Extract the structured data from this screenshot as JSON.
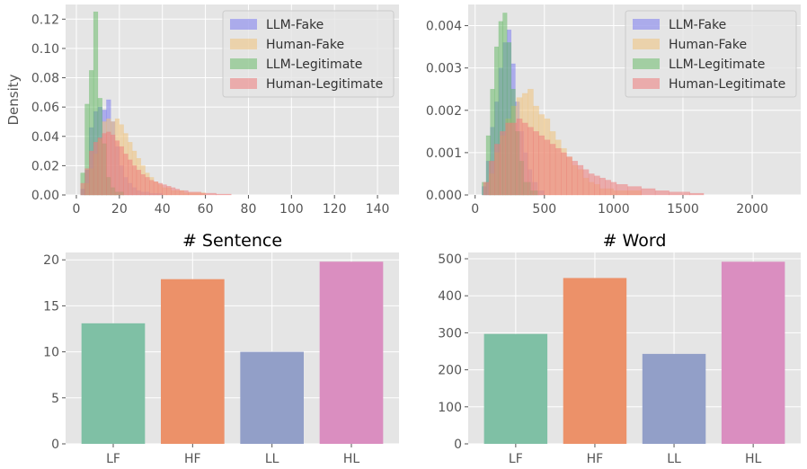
{
  "chart_data": [
    {
      "type": "histogram",
      "title": "",
      "xlabel": "",
      "ylabel": "Density",
      "xlim": [
        -5,
        150
      ],
      "ylim": [
        0,
        0.13
      ],
      "xticks": [
        0,
        20,
        40,
        60,
        80,
        100,
        120,
        140
      ],
      "yticks": [
        0.0,
        0.02,
        0.04,
        0.06,
        0.08,
        0.1,
        0.12
      ],
      "ytick_labels": [
        "0.00",
        "0.02",
        "0.04",
        "0.06",
        "0.08",
        "0.10",
        "0.12"
      ],
      "grid": true,
      "legend_position": "top-right",
      "series": [
        {
          "name": "LLM-Fake",
          "color": "#7b7bf0",
          "opacity": 0.55,
          "bins": [
            [
              2,
              4,
              0.004
            ],
            [
              4,
              6,
              0.017
            ],
            [
              6,
              8,
              0.046
            ],
            [
              8,
              10,
              0.057
            ],
            [
              10,
              12,
              0.06
            ],
            [
              12,
              14,
              0.058
            ],
            [
              14,
              16,
              0.065
            ],
            [
              16,
              18,
              0.05
            ],
            [
              18,
              20,
              0.033
            ],
            [
              20,
              22,
              0.02
            ],
            [
              22,
              24,
              0.012
            ],
            [
              24,
              26,
              0.008
            ],
            [
              26,
              28,
              0.005
            ],
            [
              28,
              30,
              0.003
            ],
            [
              30,
              34,
              0.002
            ],
            [
              34,
              40,
              0.001
            ]
          ]
        },
        {
          "name": "Human-Fake",
          "color": "#f0c27b",
          "opacity": 0.55,
          "bins": [
            [
              4,
              6,
              0.008
            ],
            [
              6,
              8,
              0.018
            ],
            [
              8,
              10,
              0.028
            ],
            [
              10,
              12,
              0.038
            ],
            [
              12,
              14,
              0.05
            ],
            [
              14,
              16,
              0.052
            ],
            [
              16,
              18,
              0.05
            ],
            [
              18,
              20,
              0.052
            ],
            [
              20,
              22,
              0.048
            ],
            [
              22,
              24,
              0.042
            ],
            [
              24,
              26,
              0.036
            ],
            [
              26,
              28,
              0.03
            ],
            [
              28,
              30,
              0.025
            ],
            [
              30,
              32,
              0.02
            ],
            [
              32,
              34,
              0.015
            ],
            [
              34,
              36,
              0.012
            ],
            [
              36,
              38,
              0.009
            ],
            [
              38,
              40,
              0.007
            ],
            [
              40,
              44,
              0.005
            ],
            [
              44,
              50,
              0.003
            ],
            [
              50,
              60,
              0.0015
            ]
          ]
        },
        {
          "name": "LLM-Legitimate",
          "color": "#5fb85f",
          "opacity": 0.5,
          "bins": [
            [
              2,
              4,
              0.015
            ],
            [
              4,
              6,
              0.062
            ],
            [
              6,
              8,
              0.085
            ],
            [
              8,
              10,
              0.125
            ],
            [
              10,
              12,
              0.066
            ],
            [
              12,
              14,
              0.035
            ],
            [
              14,
              16,
              0.012
            ],
            [
              16,
              18,
              0.005
            ],
            [
              18,
              22,
              0.002
            ]
          ]
        },
        {
          "name": "Human-Legitimate",
          "color": "#ef7b7b",
          "opacity": 0.55,
          "bins": [
            [
              2,
              4,
              0.008
            ],
            [
              4,
              6,
              0.018
            ],
            [
              6,
              8,
              0.03
            ],
            [
              8,
              10,
              0.036
            ],
            [
              10,
              12,
              0.039
            ],
            [
              12,
              14,
              0.042
            ],
            [
              14,
              16,
              0.043
            ],
            [
              16,
              18,
              0.041
            ],
            [
              18,
              20,
              0.037
            ],
            [
              20,
              22,
              0.033
            ],
            [
              22,
              24,
              0.028
            ],
            [
              24,
              26,
              0.024
            ],
            [
              26,
              28,
              0.02
            ],
            [
              28,
              30,
              0.017
            ],
            [
              30,
              32,
              0.014
            ],
            [
              32,
              34,
              0.012
            ],
            [
              34,
              36,
              0.01
            ],
            [
              36,
              38,
              0.009
            ],
            [
              38,
              40,
              0.008
            ],
            [
              40,
              42,
              0.007
            ],
            [
              42,
              44,
              0.006
            ],
            [
              44,
              46,
              0.005
            ],
            [
              46,
              48,
              0.004
            ],
            [
              48,
              52,
              0.003
            ],
            [
              52,
              58,
              0.002
            ],
            [
              58,
              65,
              0.0012
            ],
            [
              65,
              72,
              0.0006
            ]
          ]
        }
      ]
    },
    {
      "type": "histogram",
      "title": "",
      "xlabel": "",
      "ylabel": "",
      "xlim": [
        -50,
        2350
      ],
      "ylim": [
        0,
        0.0045
      ],
      "xticks": [
        0,
        500,
        1000,
        1500,
        2000
      ],
      "yticks": [
        0.0,
        0.001,
        0.002,
        0.003,
        0.004
      ],
      "ytick_labels": [
        "0.000",
        "0.001",
        "0.002",
        "0.003",
        "0.004"
      ],
      "grid": true,
      "legend_position": "top-right",
      "series": [
        {
          "name": "LLM-Fake",
          "color": "#7b7bf0",
          "opacity": 0.55,
          "bins": [
            [
              50,
              80,
              0.0002
            ],
            [
              80,
              110,
              0.0008
            ],
            [
              110,
              140,
              0.0016
            ],
            [
              140,
              170,
              0.0022
            ],
            [
              170,
              200,
              0.003
            ],
            [
              200,
              230,
              0.0036
            ],
            [
              230,
              260,
              0.0039
            ],
            [
              260,
              290,
              0.0031
            ],
            [
              290,
              320,
              0.0022
            ],
            [
              320,
              350,
              0.0015
            ],
            [
              350,
              380,
              0.001
            ],
            [
              380,
              410,
              0.0006
            ],
            [
              410,
              450,
              0.0003
            ],
            [
              450,
              500,
              0.0001
            ]
          ]
        },
        {
          "name": "Human-Fake",
          "color": "#f0c27b",
          "opacity": 0.55,
          "bins": [
            [
              100,
              140,
              0.0005
            ],
            [
              140,
              180,
              0.001
            ],
            [
              180,
              220,
              0.0014
            ],
            [
              220,
              260,
              0.0018
            ],
            [
              260,
              300,
              0.0021
            ],
            [
              300,
              340,
              0.0023
            ],
            [
              340,
              380,
              0.0024
            ],
            [
              380,
              420,
              0.0025
            ],
            [
              420,
              460,
              0.0021
            ],
            [
              460,
              500,
              0.0019
            ],
            [
              500,
              540,
              0.0018
            ],
            [
              540,
              580,
              0.0015
            ],
            [
              580,
              620,
              0.0013
            ],
            [
              620,
              660,
              0.0011
            ],
            [
              660,
              700,
              0.0009
            ],
            [
              700,
              740,
              0.0007
            ],
            [
              740,
              780,
              0.0006
            ],
            [
              780,
              820,
              0.0004
            ],
            [
              820,
              860,
              0.0003
            ],
            [
              860,
              900,
              0.00025
            ],
            [
              900,
              1000,
              0.00015
            ],
            [
              1000,
              1200,
              0.0001
            ]
          ]
        },
        {
          "name": "LLM-Legitimate",
          "color": "#5fb85f",
          "opacity": 0.5,
          "bins": [
            [
              50,
              80,
              0.0003
            ],
            [
              80,
              110,
              0.0014
            ],
            [
              110,
              140,
              0.0025
            ],
            [
              140,
              170,
              0.0035
            ],
            [
              170,
              200,
              0.0041
            ],
            [
              200,
              230,
              0.0043
            ],
            [
              230,
              260,
              0.0036
            ],
            [
              260,
              290,
              0.0025
            ],
            [
              290,
              320,
              0.0015
            ],
            [
              320,
              350,
              0.0008
            ],
            [
              350,
              400,
              0.0003
            ],
            [
              400,
              450,
              0.0001
            ]
          ]
        },
        {
          "name": "Human-Legitimate",
          "color": "#ef7b7b",
          "opacity": 0.55,
          "bins": [
            [
              60,
              100,
              0.0003
            ],
            [
              100,
              140,
              0.0008
            ],
            [
              140,
              180,
              0.0012
            ],
            [
              180,
              220,
              0.0015
            ],
            [
              220,
              260,
              0.0017
            ],
            [
              260,
              300,
              0.0017
            ],
            [
              300,
              340,
              0.0018
            ],
            [
              340,
              380,
              0.0017
            ],
            [
              380,
              420,
              0.0016
            ],
            [
              420,
              460,
              0.0015
            ],
            [
              460,
              500,
              0.0014
            ],
            [
              500,
              540,
              0.0013
            ],
            [
              540,
              580,
              0.0012
            ],
            [
              580,
              620,
              0.0011
            ],
            [
              620,
              660,
              0.001
            ],
            [
              660,
              700,
              0.0009
            ],
            [
              700,
              740,
              0.0008
            ],
            [
              740,
              780,
              0.0007
            ],
            [
              780,
              820,
              0.0006
            ],
            [
              820,
              860,
              0.0005
            ],
            [
              860,
              900,
              0.00045
            ],
            [
              900,
              940,
              0.0004
            ],
            [
              940,
              980,
              0.00035
            ],
            [
              980,
              1020,
              0.0003
            ],
            [
              1020,
              1100,
              0.00025
            ],
            [
              1100,
              1200,
              0.0002
            ],
            [
              1200,
              1300,
              0.00015
            ],
            [
              1300,
              1400,
              0.0001
            ],
            [
              1400,
              1550,
              7e-05
            ],
            [
              1550,
              1650,
              4e-05
            ]
          ]
        }
      ]
    },
    {
      "type": "bar",
      "title": "# Sentence",
      "xlabel": "",
      "ylabel": "",
      "categories": [
        "LF",
        "HF",
        "LL",
        "HL"
      ],
      "values": [
        13.1,
        17.9,
        10.0,
        19.8
      ],
      "colors": [
        "#7fc0a5",
        "#ec9169",
        "#929fc8",
        "#da8ec0"
      ],
      "ylim": [
        0,
        20.8
      ],
      "yticks": [
        0,
        5,
        10,
        15,
        20
      ],
      "grid": true
    },
    {
      "type": "bar",
      "title": "# Word",
      "xlabel": "",
      "ylabel": "",
      "categories": [
        "LF",
        "HF",
        "LL",
        "HL"
      ],
      "values": [
        297,
        448,
        243,
        492
      ],
      "colors": [
        "#7fc0a5",
        "#ec9169",
        "#929fc8",
        "#da8ec0"
      ],
      "ylim": [
        0,
        517
      ],
      "yticks": [
        0,
        100,
        200,
        300,
        400,
        500
      ],
      "grid": true
    }
  ]
}
